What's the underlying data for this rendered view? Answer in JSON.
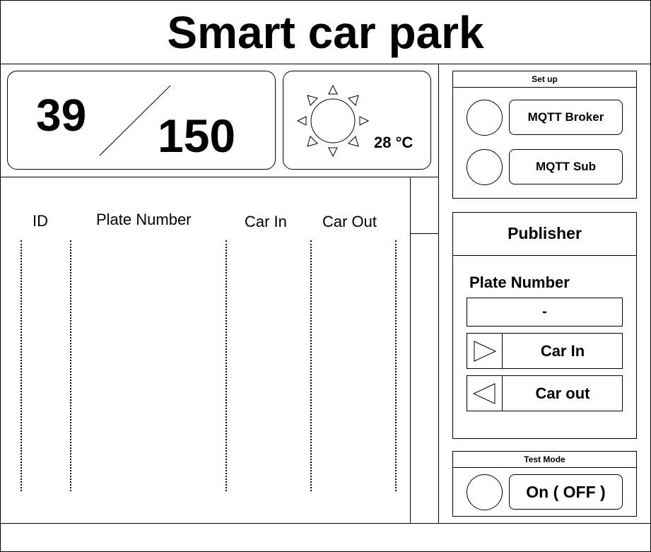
{
  "header": {
    "title": "Smart car park"
  },
  "capacity": {
    "occupied": "39",
    "total": "150"
  },
  "weather": {
    "icon": "sun-icon",
    "temperature": "28 °C"
  },
  "table": {
    "columns": [
      "ID",
      "Plate Number",
      "Car In",
      "Car Out"
    ]
  },
  "setup": {
    "title": "Set up",
    "broker_label": "MQTT Broker",
    "sub_label": "MQTT Sub"
  },
  "publisher": {
    "title": "Publisher",
    "plate_label": "Plate Number",
    "plate_value": "-",
    "car_in_label": "Car In",
    "car_out_label": "Car out"
  },
  "test_mode": {
    "title": "Test Mode",
    "toggle_label": "On ( OFF )"
  }
}
